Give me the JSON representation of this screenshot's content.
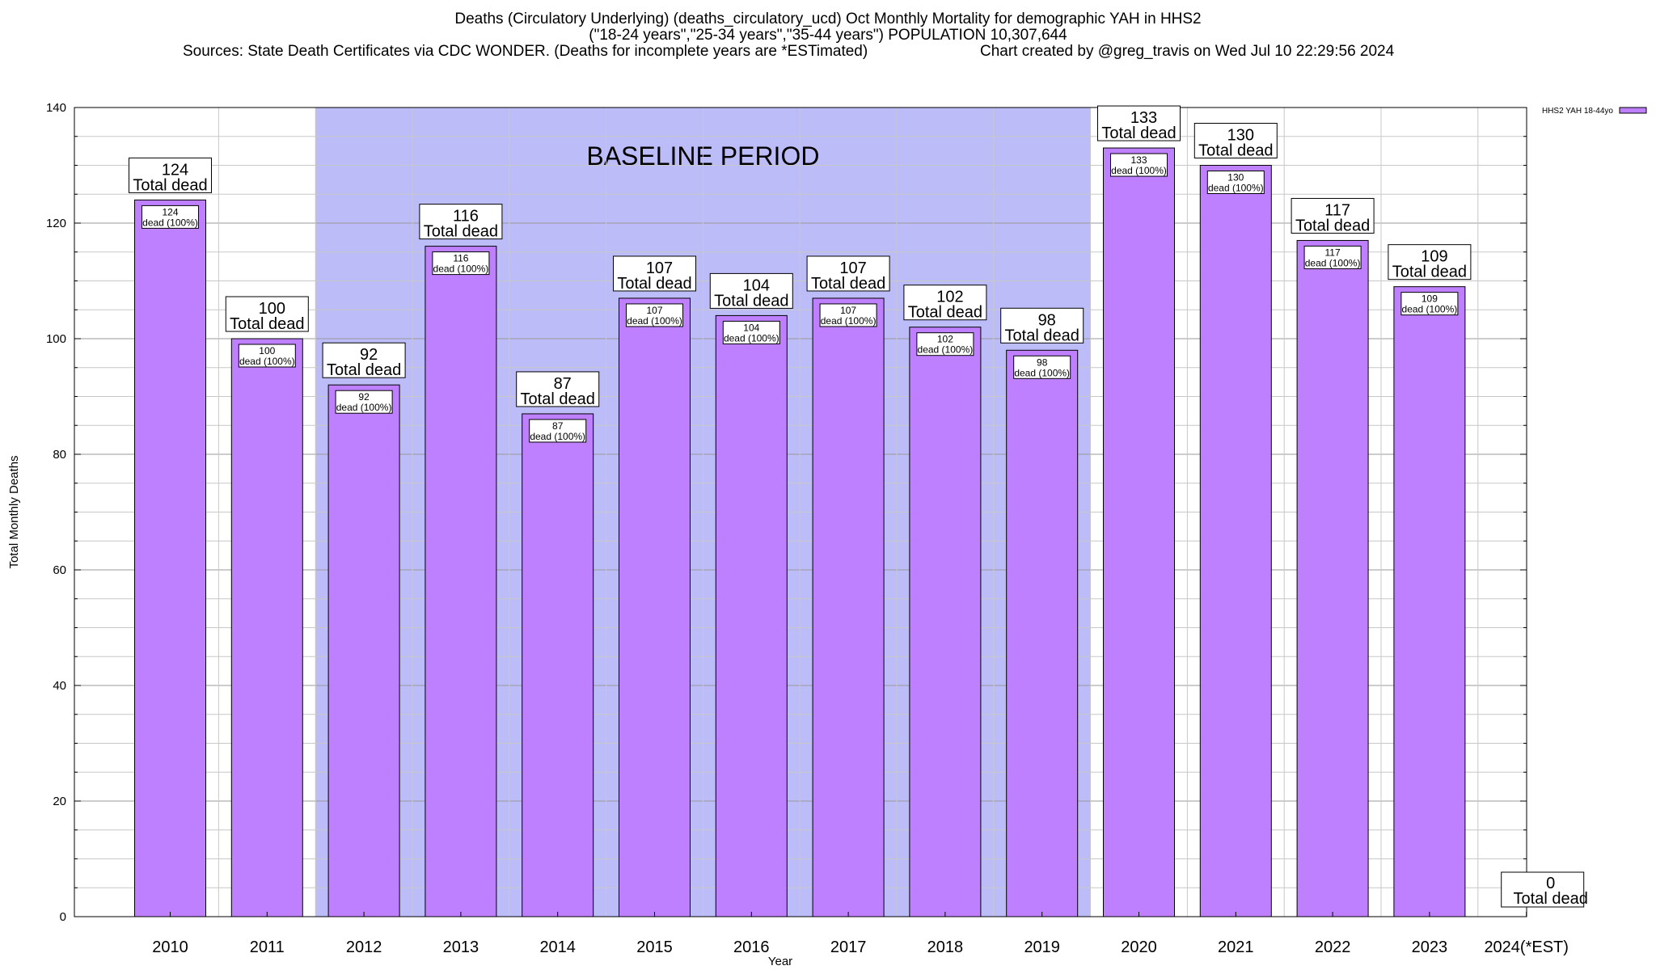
{
  "title": {
    "line1": "Deaths (Circulatory Underlying) (deaths_circulatory_ucd) Oct Monthly Mortality for demographic YAH in HHS2",
    "line2": "(\"18-24 years\",\"25-34 years\",\"35-44 years\") POPULATION 10,307,644",
    "sources": "Sources: State Death Certificates via CDC WONDER. (Deaths for incomplete years are *ESTimated)",
    "credit": "Chart created by @greg_travis on Wed Jul 10 22:29:56 2024"
  },
  "chart_data": {
    "type": "bar",
    "xlabel": "Year",
    "ylabel": "Total Monthly Deaths",
    "ylim": [
      0,
      140
    ],
    "yticks": [
      0,
      20,
      40,
      60,
      80,
      100,
      120,
      140
    ],
    "grid": true,
    "legend_position": "top-right",
    "categories": [
      "2010",
      "2011",
      "2012",
      "2013",
      "2014",
      "2015",
      "2016",
      "2017",
      "2018",
      "2019",
      "2020",
      "2021",
      "2022",
      "2023",
      "2024(*EST)"
    ],
    "series": [
      {
        "name": "HHS2 YAH 18-44yo",
        "color": "#bf80ff",
        "values": [
          124,
          100,
          92,
          116,
          87,
          107,
          104,
          107,
          102,
          98,
          133,
          130,
          117,
          109,
          0
        ]
      }
    ],
    "total_label_suffix": "Total dead",
    "inner_label_suffix": "dead (100%)",
    "baseline": {
      "label": "BASELINE PERIOD",
      "start_category": "2012",
      "end_category": "2019",
      "color": "#bcbcf8"
    }
  }
}
